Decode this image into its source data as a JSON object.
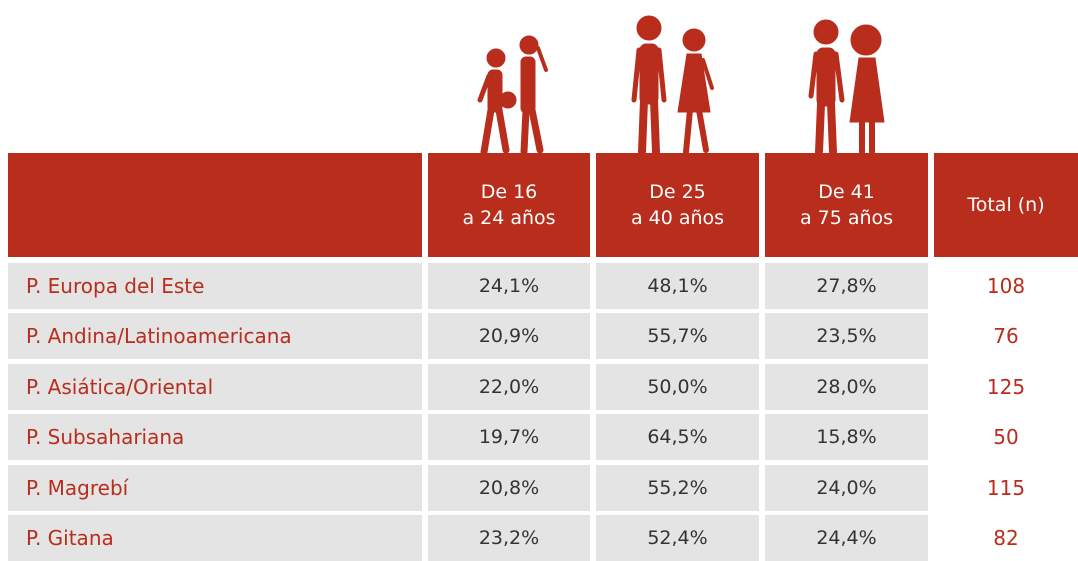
{
  "table": {
    "header": [
      [
        "De 16",
        "a 24 años"
      ],
      [
        "De 25",
        "a 40 años"
      ],
      [
        "De 41",
        "a 75 años"
      ],
      "Total (n)"
    ],
    "rows": [
      [
        "P. Europa del Este",
        "24,1%",
        "48,1%",
        "27,8%",
        108
      ],
      [
        "P. Andina/Latinoamericana",
        "20,9%",
        "55,7%",
        "23,5%",
        76
      ],
      [
        "P. Asiática/Oriental",
        "22,0%",
        "50,0%",
        "28,0%",
        125
      ],
      [
        "P. Subsahariana",
        "19,7%",
        "64,5%",
        "15,8%",
        50
      ],
      [
        "P. Magrebí",
        "20,8%",
        "55,2%",
        "24,0%",
        115
      ],
      [
        "P. Gitana",
        "23,2%",
        "52,4%",
        "24,4%",
        82
      ]
    ]
  }
}
